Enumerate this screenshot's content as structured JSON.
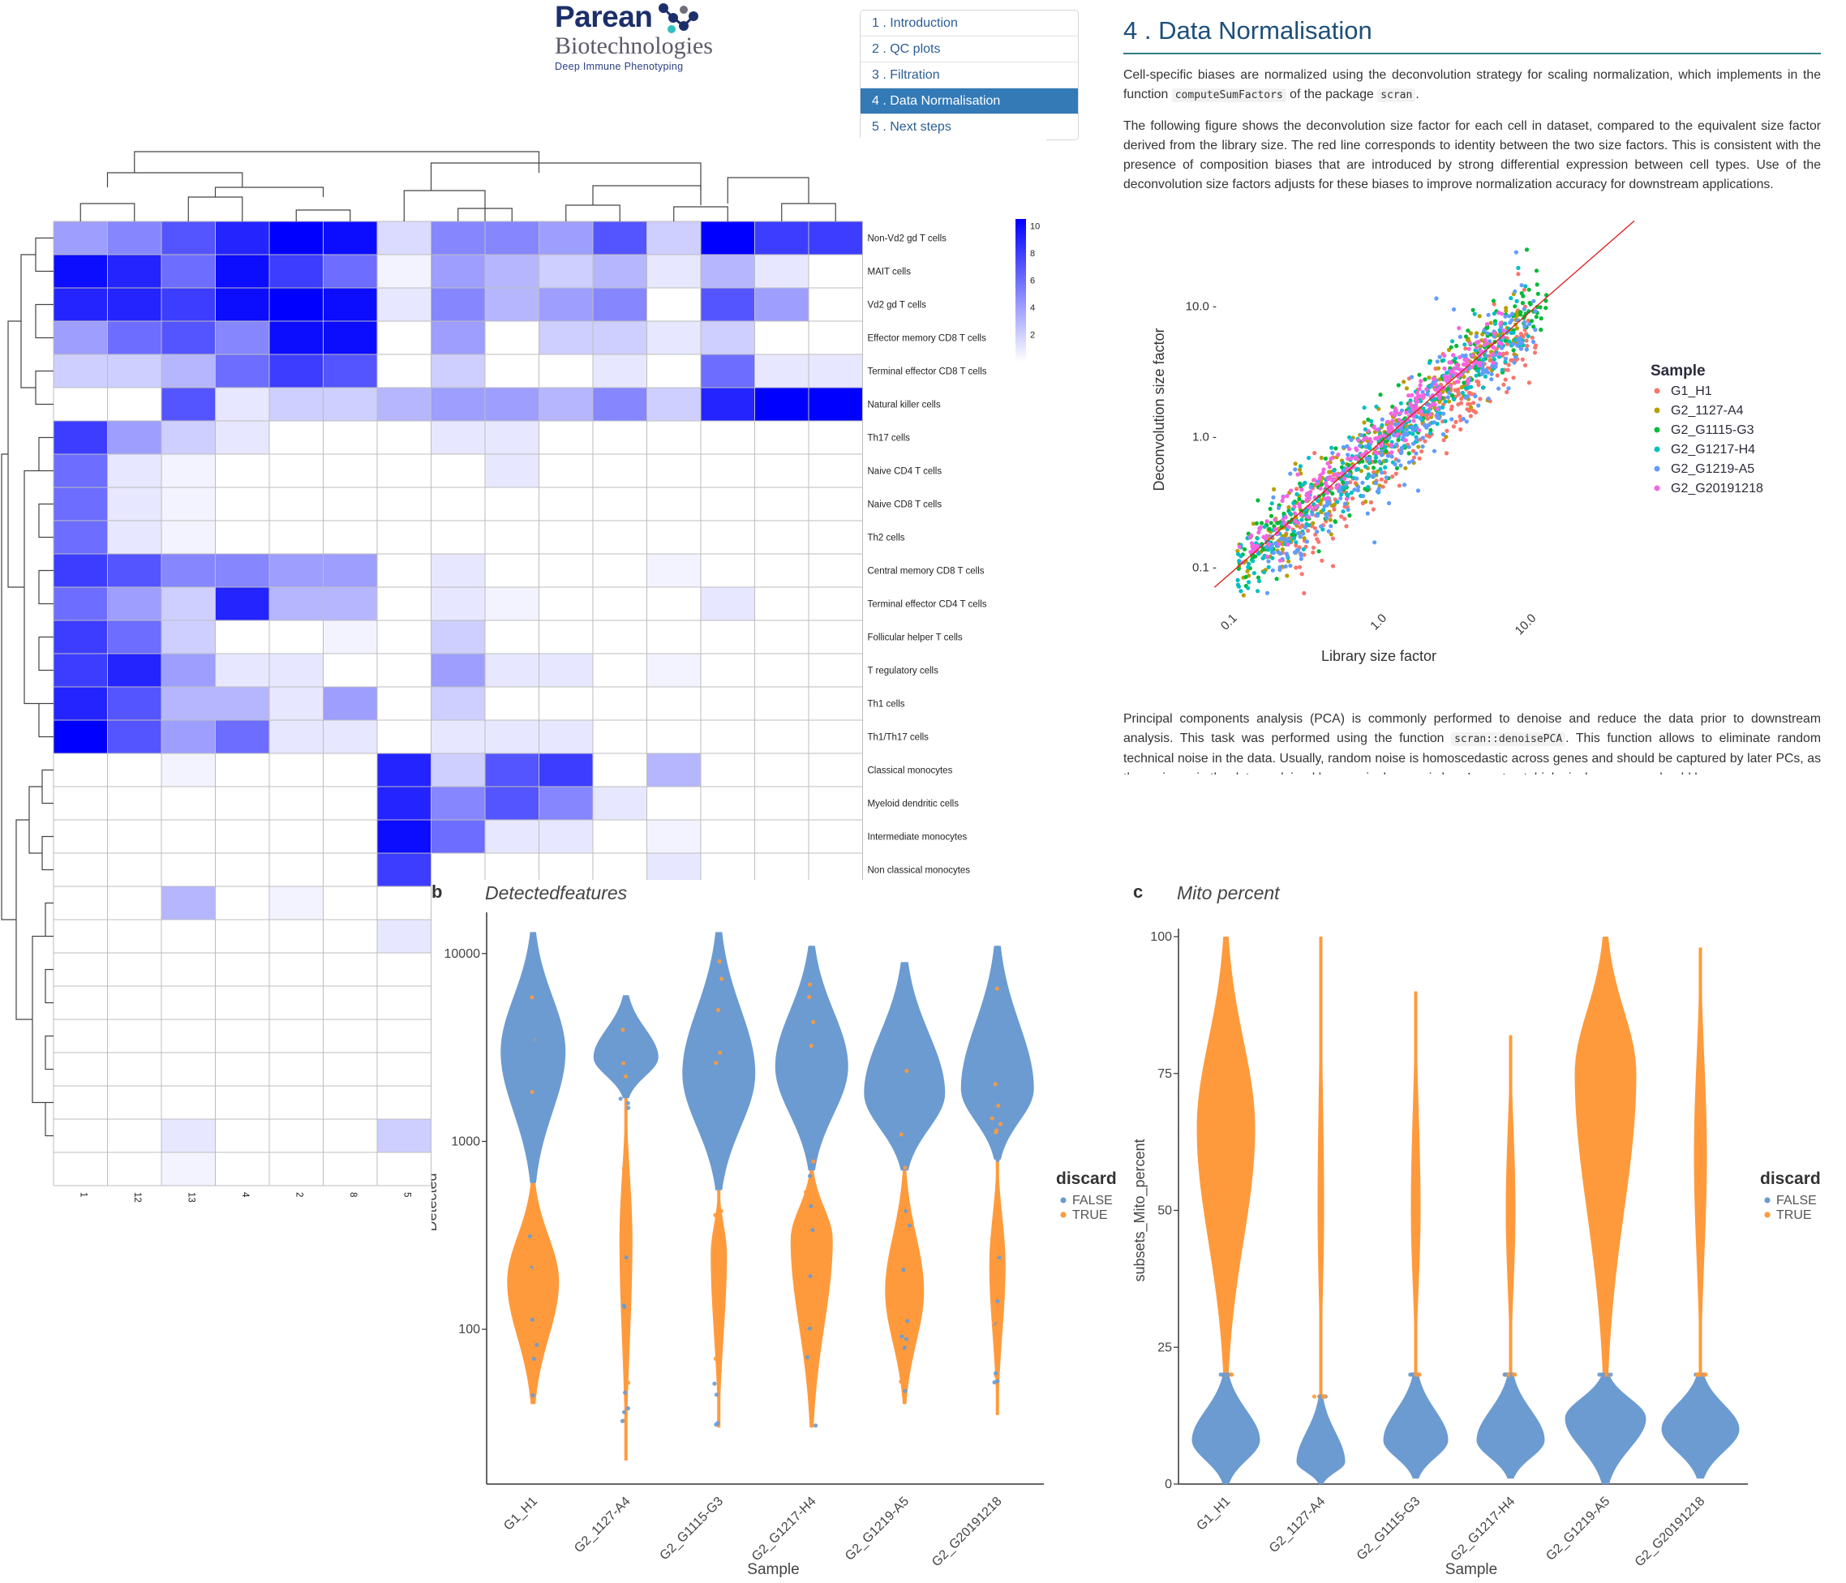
{
  "logo": {
    "brand": "Parean",
    "subtitle": "Biotechnologies",
    "tagline": "Deep Immune Phenotyping"
  },
  "toc": {
    "items": [
      {
        "label": "1 . Introduction",
        "active": false
      },
      {
        "label": "2 . QC plots",
        "active": false
      },
      {
        "label": "3 . Filtration",
        "active": false
      },
      {
        "label": "4 . Data Normalisation",
        "active": true
      },
      {
        "label": "5 . Next steps",
        "active": false
      }
    ]
  },
  "article": {
    "title": "4 . Data Normalisation",
    "p1_a": "Cell-specific biases are normalized using the deconvolution strategy for scaling normalization, which implements in the function ",
    "p1_code1": "computeSumFactors",
    "p1_b": " of the package ",
    "p1_code2": "scran",
    "p1_c": ".",
    "p2": "The following figure shows the deconvolution size factor for each cell in dataset, compared to the equivalent size factor derived from the library size. The red line corresponds to identity between the two size factors. This is consistent with the presence of composition biases that are introduced by strong differential expression between cell types. Use of the deconvolution size factors adjusts for these biases to improve normalization accuracy for downstream applications.",
    "p3_a": "Principal components analysis (PCA) is commonly performed to denoise and reduce the data prior to downstream analysis. This task was performed using the function ",
    "p3_code": "scran::denoisePCA",
    "p3_b": ". This function allows to eliminate random technical noise in the data. Usually, random noise is homoscedastic across genes and should be captured by later PCs, as the variance in the data explained by any single gene is low. In contrast, biological processes should be"
  },
  "colors": {
    "accent": "#337ab7",
    "heat_high": "#0000ff",
    "violin_false": "#6b9bd1",
    "violin_true": "#ff9a3c",
    "identity_line": "#e02020"
  },
  "chart_data": [
    {
      "type": "heatmap",
      "rows": [
        "Non-Vd2 gd T cells",
        "MAIT cells",
        "Vd2 gd T cells",
        "Effector memory CD8 T cells",
        "Terminal effector CD8 T cells",
        "Natural killer cells",
        "Th17 cells",
        "Naive CD4 T cells",
        "Naive CD8 T cells",
        "Th2 cells",
        "Central memory CD8 T cells",
        "Terminal effector CD4 T cells",
        "Follicular helper T cells",
        "T regulatory cells",
        "Th1 cells",
        "Th1/Th17 cells",
        "Classical monocytes",
        "Myeloid dendritic cells",
        "Intermediate monocytes",
        "Non classical monocytes",
        "",
        "",
        "",
        "",
        "",
        "",
        "",
        "",
        ""
      ],
      "columns": [
        "1",
        "12",
        "13",
        "4",
        "2",
        "8",
        "5",
        "",
        "",
        "",
        "",
        "",
        "",
        "",
        ""
      ],
      "colorbar_ticks": [
        "10",
        "8",
        "6",
        "4",
        "2"
      ],
      "colorbar_range": [
        0,
        10.5
      ],
      "values": [
        [
          4,
          5,
          7,
          9,
          10.5,
          10,
          1.5,
          5,
          5,
          4,
          7,
          2,
          10.5,
          8,
          8
        ],
        [
          10,
          9,
          6,
          10,
          8,
          6,
          0.5,
          4,
          3,
          2,
          3,
          1,
          3,
          1,
          0
        ],
        [
          9,
          9,
          8,
          10,
          10.5,
          10,
          1,
          5,
          3,
          4,
          5,
          0,
          7,
          4,
          0
        ],
        [
          4,
          6,
          7,
          5,
          10,
          10,
          0,
          4,
          0,
          2,
          2,
          1,
          2,
          0,
          0
        ],
        [
          2,
          2,
          3,
          6,
          8,
          7,
          0,
          2,
          0,
          0,
          1,
          0,
          6,
          1,
          1
        ],
        [
          0,
          0,
          7,
          1,
          2,
          2,
          3,
          4,
          4,
          3,
          5,
          2,
          9,
          10.5,
          10.5
        ],
        [
          8,
          4,
          2,
          1,
          0,
          0,
          0,
          1,
          1,
          0,
          0,
          0,
          0,
          0,
          0
        ],
        [
          6,
          1,
          0.5,
          0,
          0,
          0,
          0,
          0,
          1,
          0,
          0,
          0,
          0,
          0,
          0
        ],
        [
          6,
          1,
          0.5,
          0,
          0,
          0,
          0,
          0,
          0,
          0,
          0,
          0,
          0,
          0,
          0
        ],
        [
          6,
          1,
          0.5,
          0,
          0,
          0,
          0,
          0,
          0,
          0,
          0,
          0,
          0,
          0,
          0
        ],
        [
          8,
          7,
          5,
          5,
          4,
          4,
          0,
          1,
          0,
          0,
          0,
          0.5,
          0,
          0,
          0
        ],
        [
          6,
          4,
          2,
          9,
          3,
          3,
          0,
          1,
          0.5,
          0,
          0,
          0,
          1,
          0,
          0
        ],
        [
          8,
          6,
          2,
          0,
          0,
          0.5,
          0,
          2,
          0,
          0,
          0,
          0,
          0,
          0,
          0
        ],
        [
          8,
          9,
          4,
          1,
          1,
          0,
          0,
          4,
          1,
          1,
          0,
          0.5,
          0,
          0,
          0
        ],
        [
          9,
          7,
          3,
          3,
          1,
          4,
          0,
          2,
          0,
          0,
          0,
          0,
          0,
          0,
          0
        ],
        [
          10.5,
          7,
          4,
          6,
          1,
          1,
          0,
          1,
          1,
          1,
          0,
          0,
          0,
          0,
          0
        ],
        [
          0,
          0,
          0.5,
          0,
          0,
          0,
          9,
          2,
          7,
          8,
          0,
          3,
          0,
          0,
          0
        ],
        [
          0,
          0,
          0,
          0,
          0,
          0,
          9,
          5,
          7,
          5,
          1,
          0,
          0,
          0,
          0
        ],
        [
          0,
          0,
          0,
          0,
          0,
          0,
          10,
          6,
          1,
          1,
          0,
          0.5,
          0,
          0,
          0
        ],
        [
          0,
          0,
          0,
          0,
          0,
          0,
          8,
          0,
          0,
          0,
          0,
          1,
          0,
          0,
          0
        ],
        [
          0,
          0,
          3,
          0,
          0.5,
          0,
          0,
          0,
          0,
          0,
          0,
          0,
          0,
          0,
          0
        ],
        [
          0,
          0,
          0,
          0,
          0,
          0,
          1,
          0,
          0,
          0,
          0,
          0,
          0,
          0,
          0
        ],
        [
          0,
          0,
          0,
          0,
          0,
          0,
          0,
          0,
          0,
          0,
          0,
          0,
          0,
          0,
          0
        ],
        [
          0,
          0,
          0,
          0,
          0,
          0,
          0,
          0,
          0,
          0,
          0,
          0,
          0,
          0,
          0
        ],
        [
          0,
          0,
          0,
          0,
          0,
          0,
          0,
          0,
          0,
          0,
          0,
          0,
          0,
          0,
          0
        ],
        [
          0,
          0,
          0,
          0,
          0,
          0,
          0,
          0,
          0,
          0,
          0,
          0,
          0,
          0,
          0
        ],
        [
          0,
          0,
          0,
          0,
          0,
          0,
          0,
          0,
          0,
          0,
          0,
          0,
          0,
          0,
          0
        ],
        [
          0,
          0,
          1,
          0,
          0,
          0,
          2,
          0,
          0,
          0,
          0,
          0,
          0,
          0,
          0
        ],
        [
          0,
          0,
          0.5,
          0,
          0,
          0,
          0,
          0,
          0,
          0,
          0,
          0,
          0,
          0,
          0
        ]
      ]
    },
    {
      "type": "scatter",
      "xlabel": "Library size factor",
      "ylabel": "Deconvolution size factor",
      "x_scale": "log",
      "y_scale": "log",
      "xlim": [
        0.06,
        45
      ],
      "ylim": [
        0.06,
        50
      ],
      "x_ticks": [
        "0.1",
        "1.0",
        "10.0"
      ],
      "y_ticks": [
        "0.1",
        "1.0",
        "10.0"
      ],
      "legend_title": "Sample",
      "legend_position": "right",
      "series": [
        {
          "name": "G1_H1",
          "color": "#f8766d",
          "center": [
            0.2,
            1.0,
            10.0
          ],
          "spread": 0.18,
          "offset": -0.18
        },
        {
          "name": "G2_1127-A4",
          "color": "#b79f00",
          "center": [
            0.1,
            1.0,
            8.0
          ],
          "spread": 0.15,
          "offset": -0.02
        },
        {
          "name": "G2_G1115-G3",
          "color": "#00ba38",
          "center": [
            0.1,
            1.0,
            12.0
          ],
          "spread": 0.15,
          "offset": 0.02
        },
        {
          "name": "G2_G1217-H4",
          "color": "#00bfc4",
          "center": [
            0.1,
            1.0,
            9.0
          ],
          "spread": 0.16,
          "offset": -0.05
        },
        {
          "name": "G2_G1219-A5",
          "color": "#619cff",
          "center": [
            0.15,
            1.0,
            10.0
          ],
          "spread": 0.2,
          "offset": -0.1
        },
        {
          "name": "G2_G20191218",
          "color": "#f564e3",
          "center": [
            0.1,
            1.0,
            6.0
          ],
          "spread": 0.1,
          "offset": 0.05
        }
      ],
      "identity_line": true
    },
    {
      "type": "violin",
      "panel_letter": "b",
      "title": "Detectedfeatures",
      "xlabel": "Sample",
      "ylabel": "Detected",
      "y_scale": "log",
      "ylim": [
        15,
        15000
      ],
      "y_ticks": [
        "10000",
        "1000",
        "100"
      ],
      "categories": [
        "G1_H1",
        "G2_1127-A4",
        "G2_G1115-G3",
        "G2_G1217-H4",
        "G2_G1219-A5",
        "G2_G20191218"
      ],
      "legend_title": "discard",
      "legend": [
        "FALSE",
        "TRUE"
      ],
      "false_range": [
        [
          600,
          13000
        ],
        [
          1700,
          6000
        ],
        [
          550,
          13000
        ],
        [
          700,
          11000
        ],
        [
          700,
          9000
        ],
        [
          800,
          11000
        ]
      ],
      "false_mode": [
        3000,
        2800,
        2300,
        2500,
        1800,
        1900
      ],
      "true_range": [
        [
          40,
          600
        ],
        [
          20,
          1700
        ],
        [
          30,
          550
        ],
        [
          30,
          700
        ],
        [
          40,
          700
        ],
        [
          35,
          800
        ]
      ],
      "true_mode": [
        180,
        300,
        250,
        300,
        160,
        220
      ]
    },
    {
      "type": "violin",
      "panel_letter": "c",
      "title": "Mito percent",
      "xlabel": "Sample",
      "ylabel": "subsets_Mito_percent",
      "ylim": [
        0,
        100
      ],
      "y_ticks": [
        "100",
        "75",
        "50",
        "25",
        "0"
      ],
      "categories": [
        "G1_H1",
        "G2_1127-A4",
        "G2_G1115-G3",
        "G2_G1217-H4",
        "G2_G1219-A5",
        "G2_G20191218"
      ],
      "legend_title": "discard",
      "legend": [
        "FALSE",
        "TRUE"
      ],
      "false_range": [
        [
          0,
          20
        ],
        [
          0,
          16
        ],
        [
          1,
          20
        ],
        [
          1,
          20
        ],
        [
          0,
          20
        ],
        [
          1,
          20
        ]
      ],
      "false_mode": [
        8,
        4,
        8,
        8,
        12,
        10
      ],
      "true_range": [
        [
          20,
          100
        ],
        [
          16,
          100
        ],
        [
          20,
          90
        ],
        [
          20,
          82
        ],
        [
          20,
          100
        ],
        [
          20,
          98
        ]
      ],
      "true_mode": [
        65,
        50,
        50,
        50,
        75,
        60
      ]
    }
  ]
}
